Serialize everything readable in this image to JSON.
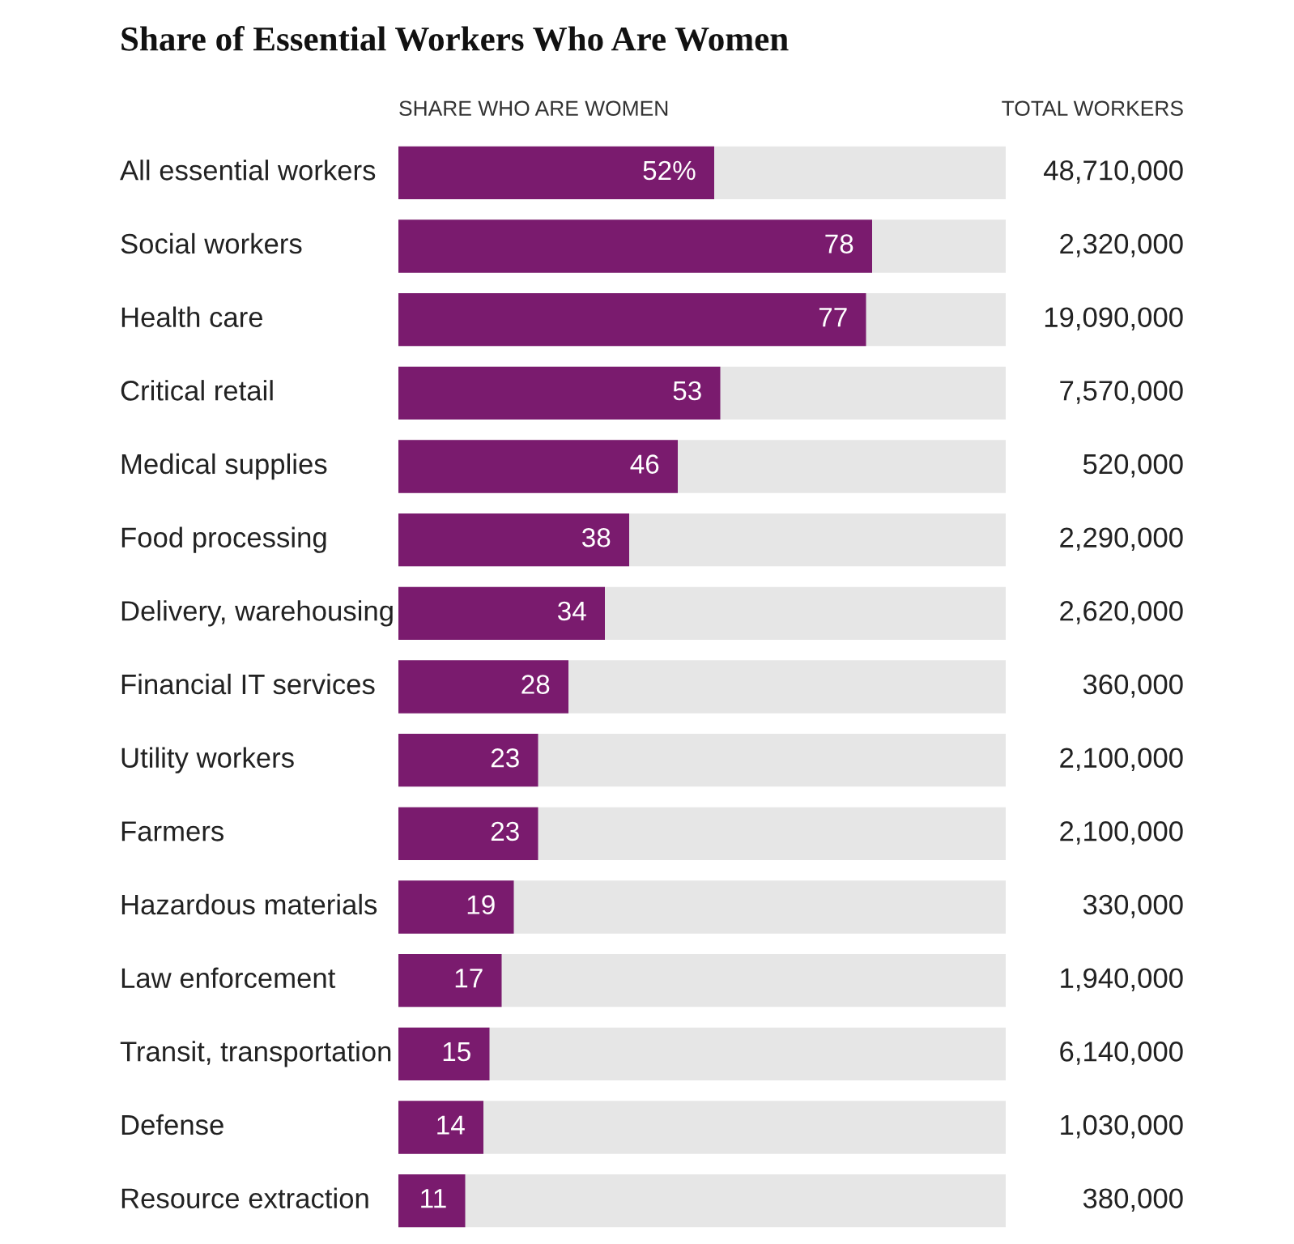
{
  "chart_data": {
    "type": "bar",
    "orientation": "horizontal",
    "title": "Share of Essential Workers Who Are Women",
    "xlabel": "SHARE WHO ARE WOMEN",
    "categories": [
      "All essential workers",
      "Social workers",
      "Health care",
      "Critical retail",
      "Medical supplies",
      "Food processing",
      "Delivery, warehousing",
      "Financial IT services",
      "Utility workers",
      "Farmers",
      "Hazardous materials",
      "Law enforcement",
      "Transit, transportation",
      "Defense",
      "Resource extraction"
    ],
    "values": [
      52,
      78,
      77,
      53,
      46,
      38,
      34,
      28,
      23,
      23,
      19,
      17,
      15,
      14,
      11
    ],
    "value_labels": [
      "52%",
      "78",
      "77",
      "53",
      "46",
      "38",
      "34",
      "28",
      "23",
      "23",
      "19",
      "17",
      "15",
      "14",
      "11"
    ],
    "color": "#7a1b6e",
    "xlim": [
      0,
      100
    ],
    "annotations": [
      "TOTAL WORKERS",
      "48,710,000",
      "2,320,000",
      "19,090,000",
      "7,570,000",
      "520,000",
      "2,290,000",
      "2,620,000",
      "360,000",
      "2,100,000",
      "2,100,000",
      "330,000",
      "1,940,000",
      "6,140,000",
      "1,030,000",
      "380,000"
    ]
  }
}
